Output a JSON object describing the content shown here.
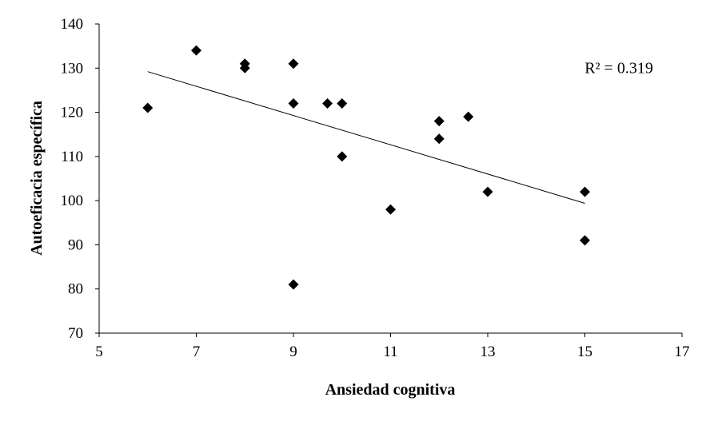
{
  "chart_data": {
    "type": "scatter",
    "title": "",
    "xlabel": "Ansiedad cognitiva",
    "ylabel": "Autoeficacia específica",
    "xlim": [
      5,
      17
    ],
    "ylim": [
      70,
      140
    ],
    "xticks": [
      5,
      7,
      9,
      11,
      13,
      15,
      17
    ],
    "yticks": [
      70,
      80,
      90,
      100,
      110,
      120,
      130,
      140
    ],
    "grid": false,
    "legend": "none",
    "marker": "diamond",
    "marker_color": "#000000",
    "series": [
      {
        "points": [
          {
            "x": 6,
            "y": 121
          },
          {
            "x": 7,
            "y": 134
          },
          {
            "x": 8,
            "y": 131
          },
          {
            "x": 8,
            "y": 130
          },
          {
            "x": 9,
            "y": 131
          },
          {
            "x": 9,
            "y": 122
          },
          {
            "x": 9,
            "y": 81
          },
          {
            "x": 9.7,
            "y": 122
          },
          {
            "x": 10,
            "y": 122
          },
          {
            "x": 10,
            "y": 110
          },
          {
            "x": 11,
            "y": 98
          },
          {
            "x": 12,
            "y": 118
          },
          {
            "x": 12,
            "y": 114
          },
          {
            "x": 12.6,
            "y": 119
          },
          {
            "x": 13,
            "y": 102
          },
          {
            "x": 15,
            "y": 102
          },
          {
            "x": 15,
            "y": 91
          }
        ]
      }
    ],
    "trendline": {
      "type": "linear",
      "color": "#000000",
      "from": {
        "x": 6,
        "y": 129.2
      },
      "to": {
        "x": 15,
        "y": 99.4
      }
    },
    "annotations": [
      {
        "text": "R² = 0.319",
        "x": 15.7,
        "y": 130
      }
    ]
  }
}
